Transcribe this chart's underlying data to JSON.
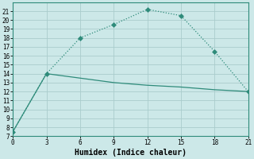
{
  "xlabel": "Humidex (Indice chaleur)",
  "line1_x": [
    0,
    3,
    6,
    9,
    12,
    15,
    18,
    21
  ],
  "line1_y": [
    7.5,
    14,
    18,
    19.5,
    21.2,
    20.5,
    16.5,
    12
  ],
  "line2_x": [
    0,
    3,
    6,
    9,
    12,
    15,
    18,
    21
  ],
  "line2_y": [
    7.5,
    14,
    13.5,
    13.0,
    12.7,
    12.5,
    12.2,
    12.0
  ],
  "line_color": "#2e8b7a",
  "bg_color": "#cce8e8",
  "grid_color": "#aacccc",
  "ylim": [
    7,
    22
  ],
  "xlim": [
    0,
    21
  ],
  "yticks": [
    7,
    8,
    9,
    10,
    11,
    12,
    13,
    14,
    15,
    16,
    17,
    18,
    19,
    20,
    21
  ],
  "xticks": [
    0,
    3,
    6,
    9,
    12,
    15,
    18,
    21
  ],
  "markersize": 3,
  "linewidth": 0.9,
  "xlabel_fontsize": 7
}
